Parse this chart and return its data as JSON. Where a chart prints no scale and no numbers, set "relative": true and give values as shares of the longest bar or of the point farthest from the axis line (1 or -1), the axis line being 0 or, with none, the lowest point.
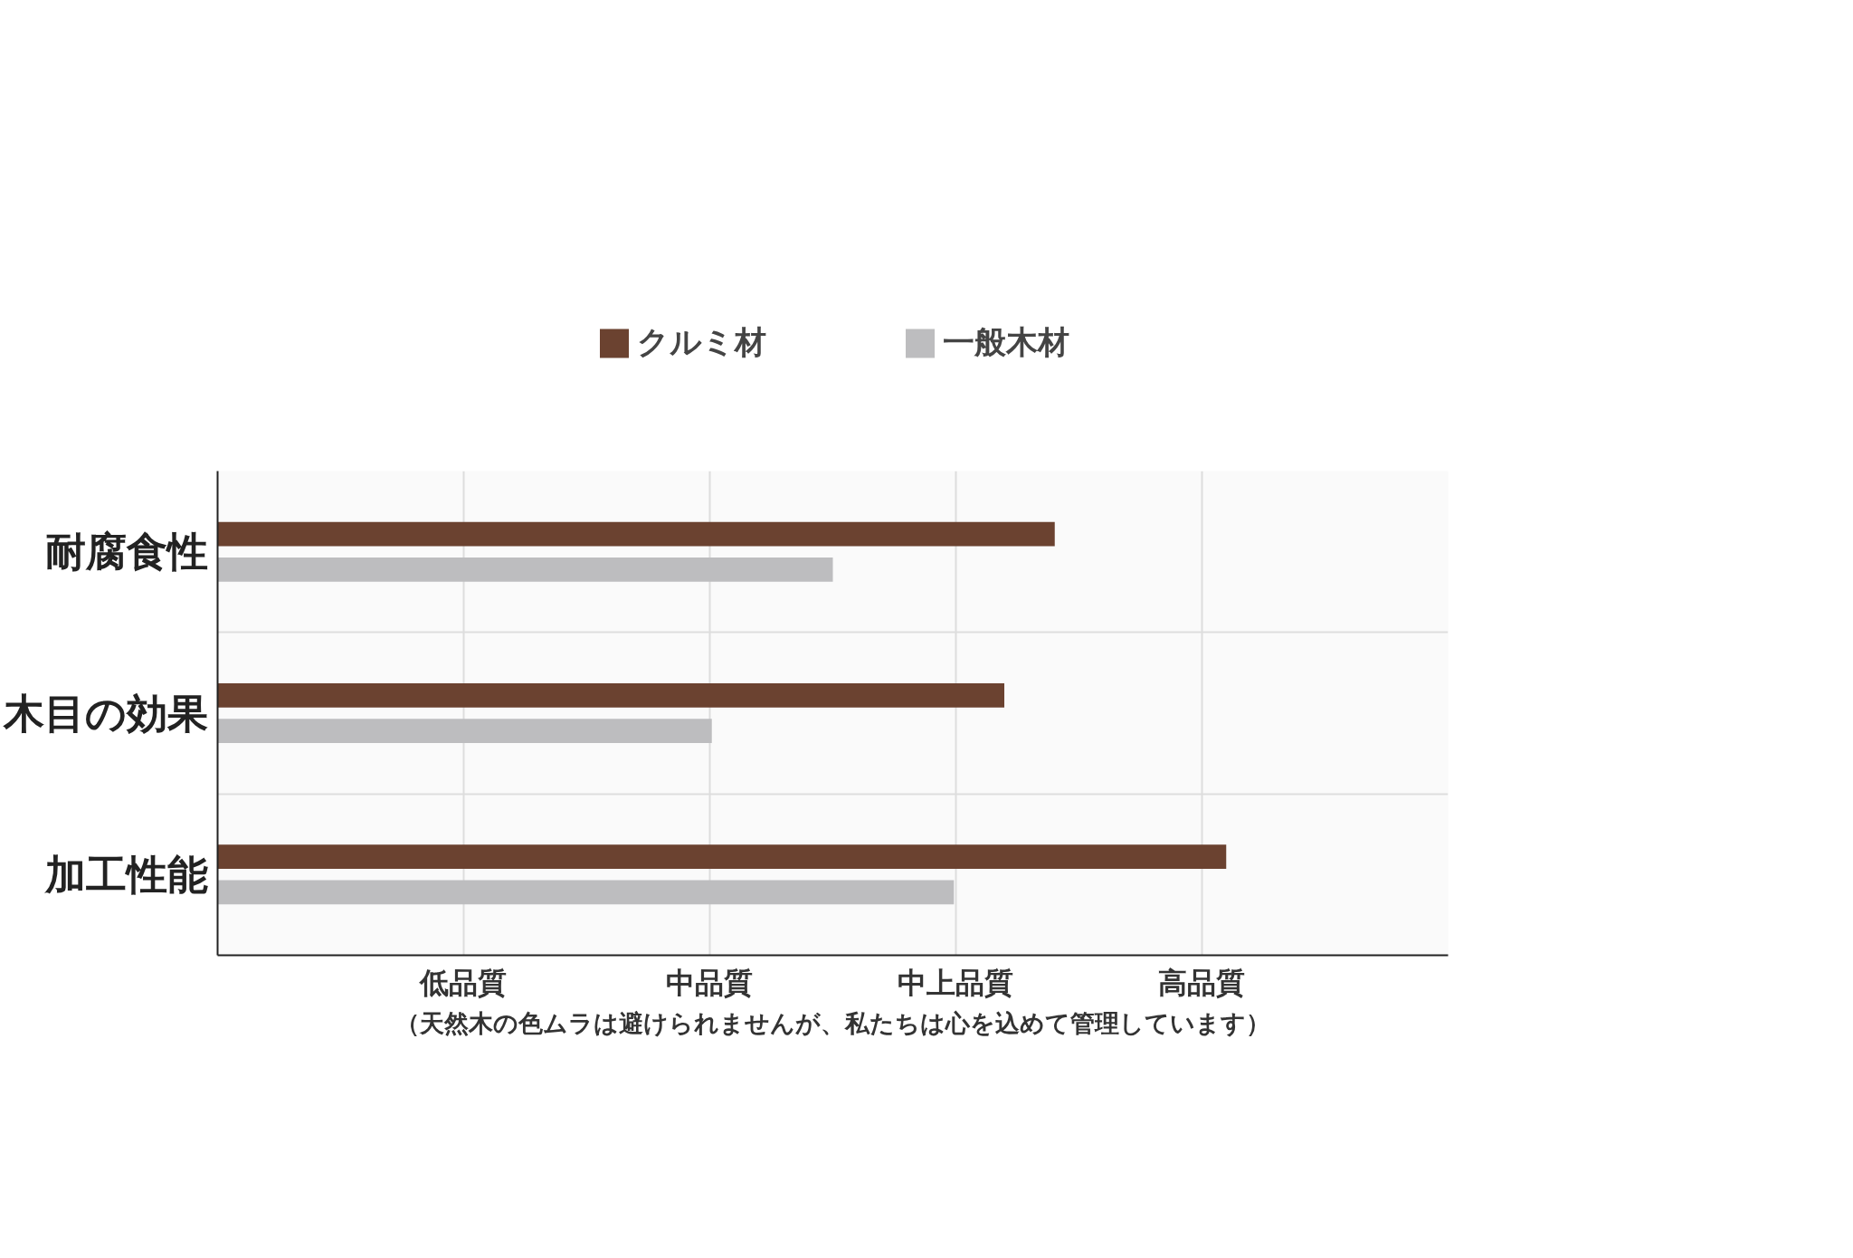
{
  "chart_data": {
    "type": "bar",
    "orientation": "horizontal",
    "relative": true,
    "categories": [
      "耐腐食性",
      "木目の効果",
      "加工性能"
    ],
    "series": [
      {
        "name": "クルミ材",
        "color": "#6b4230",
        "values": [
          0.83,
          0.78,
          1
        ]
      },
      {
        "name": "一般木材",
        "color": "#bdbdbf",
        "values": [
          0.61,
          0.49,
          0.73
        ]
      }
    ],
    "grid": true,
    "legend": "top",
    "annotations": [
      "低品質",
      "中品質",
      "中上品質",
      "高品質",
      "（天然木の色ムラは避けられませんが、私たちは心を込めて管理しています）"
    ]
  }
}
